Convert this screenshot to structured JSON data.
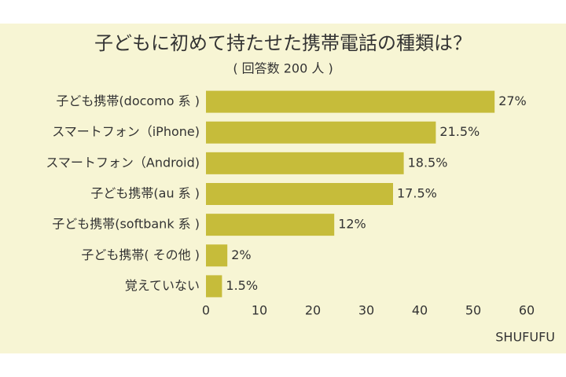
{
  "chart_data": {
    "type": "bar",
    "orientation": "horizontal",
    "title": "子どもに初めて持たせた携帯電話の種類は？",
    "subtitle": "( 回答数 200 人 )",
    "source": "SHUFUFU",
    "categories": [
      "子ども携帯(docomo 系 )",
      "スマートフォン（iPhone)",
      "スマートフォン（Android)",
      "子ども携帯(au 系 )",
      "子ども携帯(softbank 系 )",
      "子ども携帯( その他 )",
      "覚えていない"
    ],
    "values": [
      54,
      43,
      37,
      35,
      24,
      4,
      3
    ],
    "value_labels": [
      "27%",
      "21.5%",
      "18.5%",
      "17.5%",
      "12%",
      "2%",
      "1.5%"
    ],
    "color": "#c6bc3a",
    "xlim": [
      0,
      60
    ],
    "xticks": [
      0,
      10,
      20,
      30,
      40,
      50,
      60
    ],
    "grid": false
  }
}
